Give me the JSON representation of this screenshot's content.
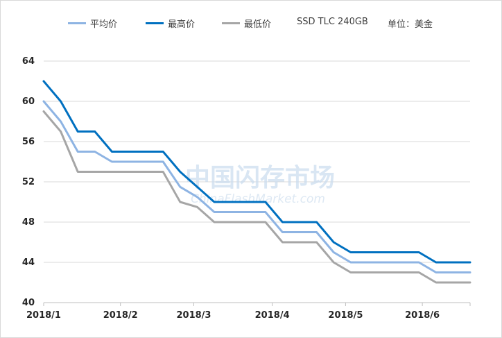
{
  "chart_data": {
    "type": "line",
    "title": "",
    "xlabel": "",
    "ylabel": "",
    "ylim": [
      40,
      64
    ],
    "yticks": [
      40,
      44,
      48,
      52,
      56,
      60,
      64
    ],
    "xlim": [
      0,
      25
    ],
    "xtick_labels": [
      "2018/1",
      "2018/2",
      "2018/3",
      "2018/4",
      "2018/5",
      "2018/6"
    ],
    "xtick_positions": [
      0,
      4.5,
      8.8,
      13.4,
      17.7,
      22.2
    ],
    "grid": "horizontal",
    "legend_placement": "top",
    "annotations": [
      "SSD TLC 240GB",
      "单位：美金"
    ],
    "watermark": [
      "中国闪存市场",
      "ChinaFlashMarket.com"
    ],
    "series": [
      {
        "name": "平均价",
        "color": "#8eb4e3",
        "x": [
          0,
          1,
          2,
          3,
          4,
          5,
          6,
          7,
          8,
          9,
          10,
          11,
          12,
          13,
          14,
          15,
          16,
          17,
          18,
          19,
          20,
          21,
          22,
          23,
          24,
          25
        ],
        "values": [
          60,
          58,
          55,
          55,
          54,
          54,
          54,
          54,
          51.5,
          50.5,
          49,
          49,
          49,
          49,
          47,
          47,
          47,
          45,
          44,
          44,
          44,
          44,
          44,
          43,
          43,
          43
        ]
      },
      {
        "name": "最高价",
        "color": "#0070c0",
        "x": [
          0,
          1,
          2,
          3,
          4,
          5,
          6,
          7,
          8,
          9,
          10,
          11,
          12,
          13,
          14,
          15,
          16,
          17,
          18,
          19,
          20,
          21,
          22,
          23,
          24,
          25
        ],
        "values": [
          62,
          60,
          57,
          57,
          55,
          55,
          55,
          55,
          53,
          51.5,
          50,
          50,
          50,
          50,
          48,
          48,
          48,
          46,
          45,
          45,
          45,
          45,
          45,
          44,
          44,
          44
        ]
      },
      {
        "name": "最低价",
        "color": "#a6a6a6",
        "x": [
          0,
          1,
          2,
          3,
          4,
          5,
          6,
          7,
          8,
          9,
          10,
          11,
          12,
          13,
          14,
          15,
          16,
          17,
          18,
          19,
          20,
          21,
          22,
          23,
          24,
          25
        ],
        "values": [
          59,
          57,
          53,
          53,
          53,
          53,
          53,
          53,
          50,
          49.5,
          48,
          48,
          48,
          48,
          46,
          46,
          46,
          44,
          43,
          43,
          43,
          43,
          43,
          42,
          42,
          42
        ]
      }
    ]
  }
}
